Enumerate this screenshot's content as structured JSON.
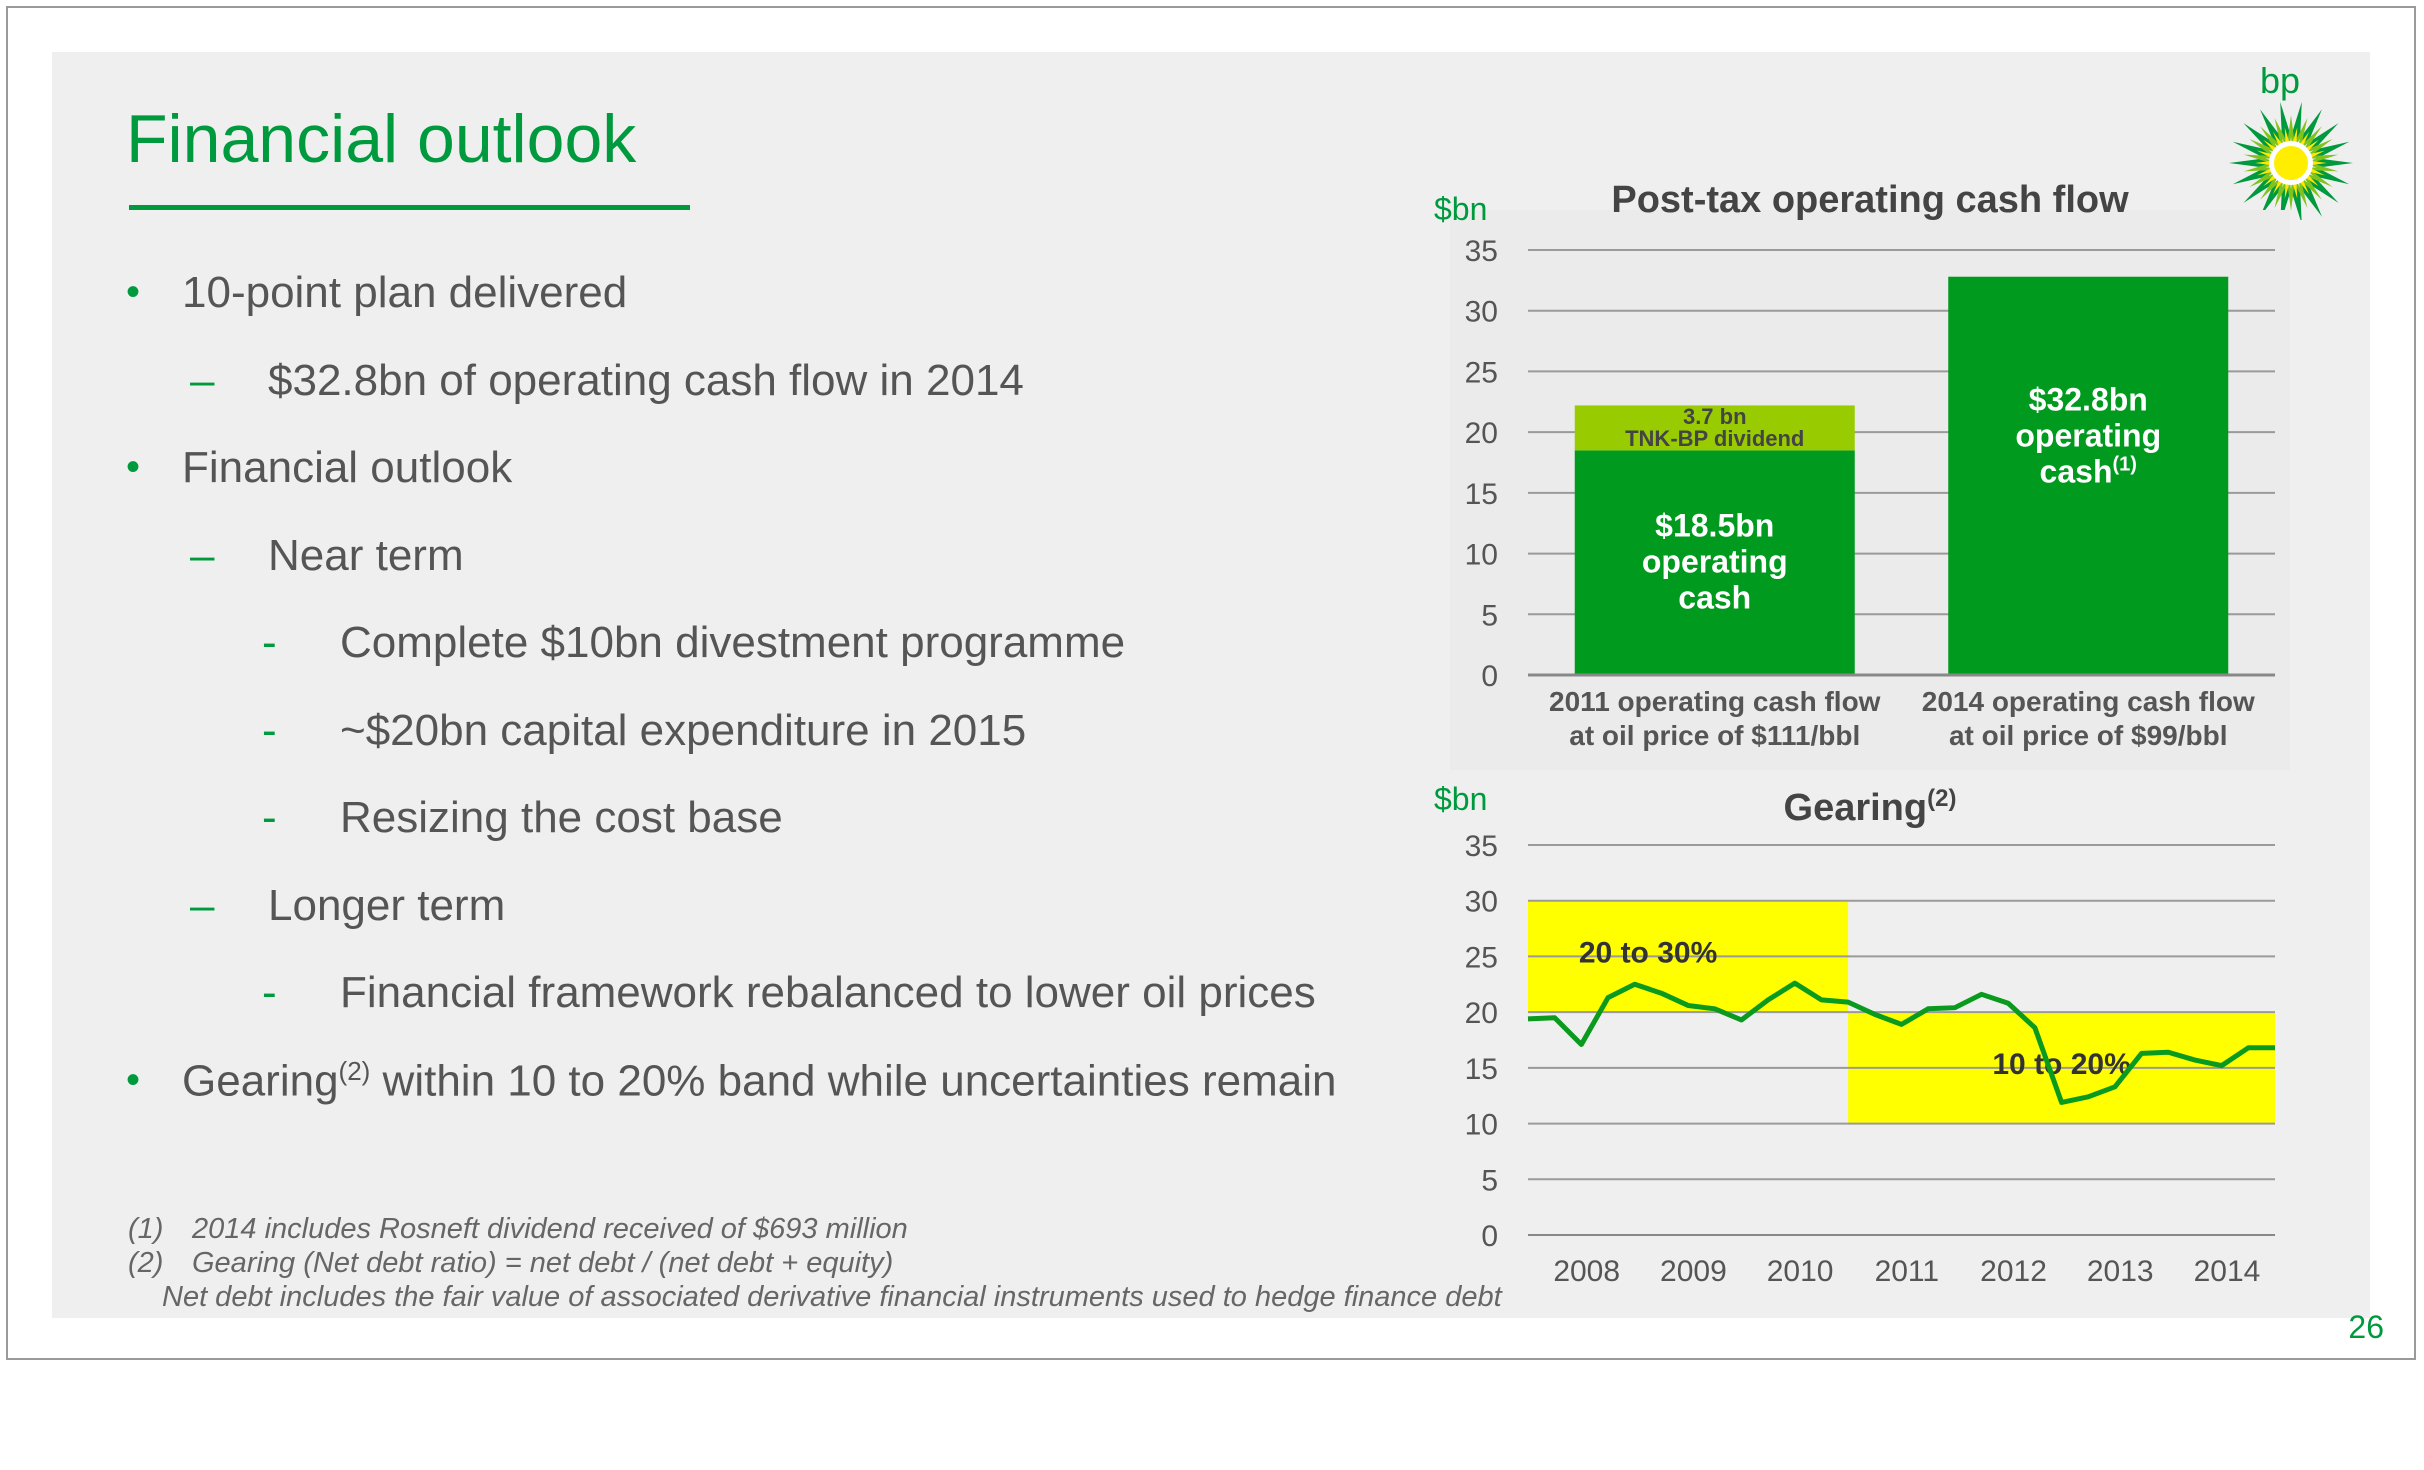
{
  "slide": {
    "title": "Financial outlook",
    "logo_text": "bp",
    "page_number": "26"
  },
  "bullets": [
    {
      "level": 1,
      "marker": "•",
      "text": "10-point plan delivered"
    },
    {
      "level": 2,
      "marker": "–",
      "text": "$32.8bn of operating cash flow in 2014"
    },
    {
      "level": 1,
      "marker": "•",
      "text": "Financial outlook"
    },
    {
      "level": 2,
      "marker": "–",
      "text": "Near term"
    },
    {
      "level": 3,
      "marker": "-",
      "text": "Complete $10bn divestment programme"
    },
    {
      "level": 3,
      "marker": "-",
      "text": "~$20bn capital expenditure in 2015"
    },
    {
      "level": 3,
      "marker": "-",
      "text": "Resizing the cost base"
    },
    {
      "level": 2,
      "marker": "–",
      "text": "Longer term"
    },
    {
      "level": 3,
      "marker": "-",
      "text": "Financial framework rebalanced to lower oil prices"
    },
    {
      "level": 1,
      "marker": "•",
      "text": "Gearing",
      "sup": "(2)",
      "text_after": " within 10 to 20% band while uncertainties remain"
    }
  ],
  "footnotes": [
    {
      "num": "(1)",
      "text": "2014 includes Rosneft dividend received of $693 million"
    },
    {
      "num": "(2)",
      "text": "Gearing (Net debt ratio) = net debt / (net debt + equity)"
    },
    {
      "num": "",
      "text": "Net debt includes the fair value of associated derivative financial instruments used to hedge finance debt"
    }
  ],
  "chart_data": [
    {
      "type": "bar",
      "title": "Post-tax operating cash flow",
      "ylabel": "$bn",
      "ylim": [
        0,
        35
      ],
      "yticks": [
        0,
        5,
        10,
        15,
        20,
        25,
        30,
        35
      ],
      "grid": true,
      "categories": [
        [
          "2011 operating cash flow",
          "at oil price of $111/bbl"
        ],
        [
          "2014 operating cash flow",
          "at oil price of $99/bbl"
        ]
      ],
      "series": [
        {
          "values": [
            18.5,
            32.8
          ],
          "color": "#009a1e",
          "labels": [
            [
              "$18.5bn",
              "operating",
              "cash"
            ],
            [
              "$32.8bn",
              "operating",
              "cash",
              "(1)"
            ]
          ]
        },
        {
          "values": [
            3.7,
            0
          ],
          "color": "#99cc00",
          "labels": [
            [
              "3.7 bn",
              "TNK-BP dividend"
            ],
            []
          ]
        }
      ]
    },
    {
      "type": "line",
      "title": "Gearing",
      "title_sup": "(2)",
      "ylabel": "$bn",
      "ylim": [
        0,
        35
      ],
      "yticks": [
        0,
        5,
        10,
        15,
        20,
        25,
        30,
        35
      ],
      "grid": true,
      "xlim": [
        2007.45,
        2014.45
      ],
      "xticks": [
        2008,
        2009,
        2010,
        2011,
        2012,
        2013,
        2014
      ],
      "bands": [
        {
          "x0": 2007.45,
          "x1": 2010.45,
          "y0": 20,
          "y1": 30,
          "label": "20 to 30%",
          "color": "#ffff00"
        },
        {
          "x0": 2010.45,
          "x1": 2014.45,
          "y0": 10,
          "y1": 20,
          "label": "10 to 20%",
          "color": "#ffff00"
        }
      ],
      "series": [
        {
          "color": "#0a9a1e",
          "x": [
            2007.45,
            2007.7,
            2007.95,
            2008.2,
            2008.45,
            2008.7,
            2008.95,
            2009.2,
            2009.45,
            2009.7,
            2009.95,
            2010.2,
            2010.45,
            2010.7,
            2010.95,
            2011.2,
            2011.45,
            2011.7,
            2011.95,
            2012.2,
            2012.45,
            2012.7,
            2012.95,
            2013.2,
            2013.45,
            2013.7,
            2013.95,
            2014.2,
            2014.45
          ],
          "y": [
            19.4,
            19.5,
            17.1,
            21.3,
            22.5,
            21.7,
            20.6,
            20.3,
            19.3,
            21.1,
            22.6,
            21.1,
            20.9,
            19.8,
            18.9,
            20.3,
            20.4,
            21.6,
            20.8,
            18.6,
            11.9,
            12.4,
            13.3,
            16.3,
            16.4,
            15.7,
            15.2,
            16.8,
            16.8
          ]
        }
      ]
    }
  ]
}
